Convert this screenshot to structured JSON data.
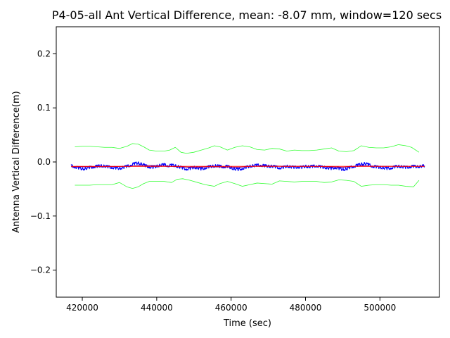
{
  "chart_data": {
    "type": "line",
    "title": "P4-05-all Ant Vertical Difference, mean: -8.07 mm, window=120 secs",
    "xlabel": "Time (sec)",
    "ylabel": "Antenna Vertical Difference(m)",
    "xlim": [
      413000,
      516000
    ],
    "ylim": [
      -0.25,
      0.25
    ],
    "x_ticks": [
      420000,
      440000,
      460000,
      480000,
      500000
    ],
    "x_tick_labels": [
      "420000",
      "440000",
      "460000",
      "480000",
      "500000"
    ],
    "y_ticks": [
      -0.2,
      -0.1,
      0.0,
      0.1,
      0.2
    ],
    "y_tick_labels": [
      "−0.2",
      "−0.1",
      "0.0",
      "0.1",
      "0.2"
    ],
    "grid": false,
    "legend": "none",
    "colors": {
      "raw": "#0000ff",
      "mean": "#ff0000",
      "smoothed": "#800080",
      "upper_band": "#33ff33",
      "lower_band": "#33ff33"
    },
    "series": [
      {
        "role": "raw",
        "x": [
          417000,
          418000,
          419000,
          420000,
          421000,
          422000,
          423000,
          424000,
          425000,
          426000,
          427000,
          428000,
          429000,
          430000,
          431000,
          432000,
          433000,
          434000,
          435000,
          436000,
          437000,
          438000,
          439000,
          440000,
          441000,
          442000,
          443000,
          444000,
          445000,
          446000,
          447000,
          448000,
          449000,
          450000,
          451000,
          452000,
          453000,
          454000,
          455000,
          456000,
          457000,
          458000,
          459000,
          460000,
          461000,
          462000,
          463000,
          464000,
          465000,
          466000,
          467000,
          468000,
          469000,
          470000,
          471000,
          472000,
          473000,
          474000,
          475000,
          476000,
          477000,
          478000,
          479000,
          480000,
          481000,
          482000,
          483000,
          484000,
          485000,
          486000,
          487000,
          488000,
          489000,
          490000,
          491000,
          492000,
          493000,
          494000,
          495000,
          496000,
          497000,
          498000,
          499000,
          500000,
          501000,
          502000,
          503000,
          504000,
          505000,
          506000,
          507000,
          508000,
          509000,
          510000,
          511000,
          512000
        ],
        "y": [
          -0.007,
          -0.009,
          -0.011,
          -0.013,
          -0.012,
          -0.01,
          -0.009,
          -0.008,
          -0.007,
          -0.008,
          -0.009,
          -0.01,
          -0.011,
          -0.012,
          -0.01,
          -0.008,
          -0.006,
          -0.003,
          -0.002,
          -0.004,
          -0.007,
          -0.009,
          -0.01,
          -0.008,
          -0.006,
          -0.005,
          -0.007,
          -0.006,
          -0.007,
          -0.009,
          -0.011,
          -0.013,
          -0.012,
          -0.01,
          -0.011,
          -0.013,
          -0.011,
          -0.009,
          -0.008,
          -0.007,
          -0.008,
          -0.009,
          -0.008,
          -0.011,
          -0.013,
          -0.014,
          -0.012,
          -0.01,
          -0.008,
          -0.007,
          -0.006,
          -0.006,
          -0.007,
          -0.008,
          -0.008,
          -0.009,
          -0.011,
          -0.01,
          -0.008,
          -0.009,
          -0.01,
          -0.009,
          -0.01,
          -0.008,
          -0.009,
          -0.008,
          -0.007,
          -0.009,
          -0.01,
          -0.011,
          -0.012,
          -0.01,
          -0.012,
          -0.014,
          -0.013,
          -0.01,
          -0.008,
          -0.006,
          -0.004,
          -0.003,
          -0.005,
          -0.008,
          -0.009,
          -0.01,
          -0.011,
          -0.012,
          -0.011,
          -0.009,
          -0.008,
          -0.009,
          -0.01,
          -0.009,
          -0.008,
          -0.009,
          -0.008,
          -0.007
        ]
      },
      {
        "role": "mean",
        "x": [
          417000,
          512000
        ],
        "y": [
          -0.00807,
          -0.00807
        ]
      },
      {
        "role": "smoothed",
        "x": [
          417000,
          425000,
          433000,
          436000,
          441000,
          449000,
          455000,
          462000,
          468000,
          475000,
          482000,
          490000,
          495000,
          500000,
          506000,
          512000
        ],
        "y": [
          -0.009,
          -0.009,
          -0.008,
          -0.006,
          -0.007,
          -0.01,
          -0.009,
          -0.01,
          -0.007,
          -0.008,
          -0.008,
          -0.01,
          -0.007,
          -0.008,
          -0.008,
          -0.008
        ]
      },
      {
        "role": "upper_band",
        "x": [
          418000,
          420000,
          422000,
          424000,
          426000,
          428000,
          430000,
          432000,
          433500,
          435000,
          436500,
          438000,
          440000,
          442000,
          443500,
          445000,
          446500,
          448000,
          450000,
          452000,
          454000,
          455500,
          457000,
          459000,
          461000,
          463000,
          465000,
          467000,
          469000,
          471000,
          473000,
          475000,
          477000,
          479000,
          481000,
          483000,
          485000,
          487000,
          489000,
          491000,
          493000,
          495000,
          497000,
          499000,
          501000,
          503000,
          505000,
          507000,
          508500,
          510500
        ],
        "y": [
          0.028,
          0.029,
          0.029,
          0.028,
          0.027,
          0.027,
          0.025,
          0.029,
          0.034,
          0.033,
          0.028,
          0.022,
          0.02,
          0.02,
          0.022,
          0.027,
          0.018,
          0.016,
          0.018,
          0.022,
          0.026,
          0.03,
          0.028,
          0.022,
          0.027,
          0.03,
          0.028,
          0.023,
          0.022,
          0.025,
          0.024,
          0.02,
          0.022,
          0.021,
          0.021,
          0.022,
          0.024,
          0.026,
          0.02,
          0.019,
          0.021,
          0.03,
          0.027,
          0.026,
          0.026,
          0.028,
          0.032,
          0.03,
          0.027,
          0.018
        ]
      },
      {
        "role": "lower_band",
        "x": [
          418000,
          420000,
          422000,
          424000,
          426000,
          428000,
          430000,
          432000,
          433500,
          435000,
          436500,
          438000,
          440000,
          442000,
          444000,
          445500,
          447000,
          449000,
          451000,
          453000,
          455500,
          457000,
          459000,
          461000,
          463000,
          465000,
          467000,
          469000,
          471000,
          473000,
          475000,
          477000,
          479000,
          481000,
          483000,
          485000,
          487000,
          489000,
          491000,
          493000,
          495000,
          497000,
          499000,
          501000,
          503000,
          505000,
          507000,
          509000,
          510500
        ],
        "y": [
          -0.043,
          -0.043,
          -0.043,
          -0.042,
          -0.042,
          -0.042,
          -0.038,
          -0.046,
          -0.049,
          -0.046,
          -0.04,
          -0.036,
          -0.036,
          -0.036,
          -0.038,
          -0.032,
          -0.031,
          -0.034,
          -0.038,
          -0.042,
          -0.045,
          -0.04,
          -0.036,
          -0.04,
          -0.045,
          -0.042,
          -0.039,
          -0.04,
          -0.041,
          -0.035,
          -0.036,
          -0.037,
          -0.036,
          -0.036,
          -0.036,
          -0.038,
          -0.037,
          -0.033,
          -0.034,
          -0.036,
          -0.045,
          -0.043,
          -0.042,
          -0.042,
          -0.043,
          -0.043,
          -0.045,
          -0.046,
          -0.034
        ]
      }
    ]
  }
}
